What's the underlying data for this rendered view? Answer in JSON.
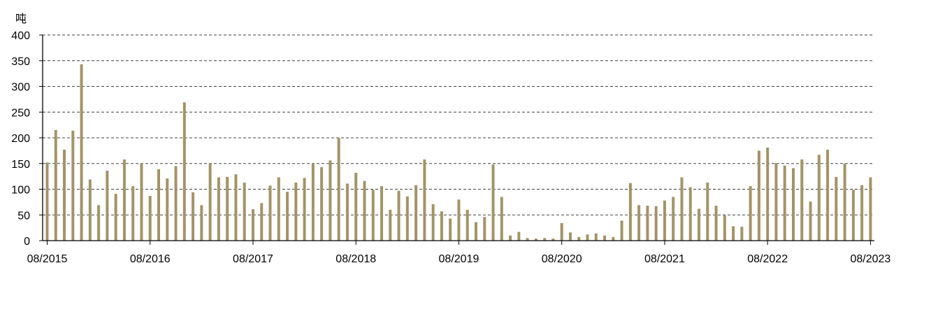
{
  "chart_data": {
    "type": "bar",
    "title": "",
    "xlabel": "",
    "ylabel": "",
    "y_unit": "吨",
    "ylim": [
      0,
      400
    ],
    "y_ticks": [
      0,
      50,
      100,
      150,
      200,
      250,
      300,
      350,
      400
    ],
    "grid": "horizontal-dashed",
    "legend": "none",
    "bar_color": "#A39467",
    "x_tick_labels": [
      "08/2015",
      "08/2016",
      "08/2017",
      "08/2018",
      "08/2019",
      "08/2020",
      "08/2021",
      "08/2022",
      "08/2023"
    ],
    "categories": [
      "08/2015",
      "09/2015",
      "10/2015",
      "11/2015",
      "12/2015",
      "01/2016",
      "02/2016",
      "03/2016",
      "04/2016",
      "05/2016",
      "06/2016",
      "07/2016",
      "08/2016",
      "09/2016",
      "10/2016",
      "11/2016",
      "12/2016",
      "01/2017",
      "02/2017",
      "03/2017",
      "04/2017",
      "05/2017",
      "06/2017",
      "07/2017",
      "08/2017",
      "09/2017",
      "10/2017",
      "11/2017",
      "12/2017",
      "01/2018",
      "02/2018",
      "03/2018",
      "04/2018",
      "05/2018",
      "06/2018",
      "07/2018",
      "08/2018",
      "09/2018",
      "10/2018",
      "11/2018",
      "12/2018",
      "01/2019",
      "02/2019",
      "03/2019",
      "04/2019",
      "05/2019",
      "06/2019",
      "07/2019",
      "08/2019",
      "09/2019",
      "10/2019",
      "11/2019",
      "12/2019",
      "01/2020",
      "02/2020",
      "03/2020",
      "04/2020",
      "05/2020",
      "06/2020",
      "07/2020",
      "08/2020",
      "09/2020",
      "10/2020",
      "11/2020",
      "12/2020",
      "01/2021",
      "02/2021",
      "03/2021",
      "04/2021",
      "05/2021",
      "06/2021",
      "07/2021",
      "08/2021",
      "09/2021",
      "10/2021",
      "11/2021",
      "12/2021",
      "01/2022",
      "02/2022",
      "03/2022",
      "04/2022",
      "05/2022",
      "06/2022",
      "07/2022",
      "08/2022",
      "09/2022",
      "10/2022",
      "11/2022",
      "12/2022",
      "01/2023",
      "02/2023",
      "03/2023",
      "04/2023",
      "05/2023",
      "06/2023",
      "07/2023",
      "08/2023"
    ],
    "values": [
      152,
      215,
      177,
      214,
      343,
      119,
      69,
      136,
      91,
      158,
      106,
      150,
      87,
      139,
      121,
      145,
      269,
      94,
      69,
      150,
      123,
      124,
      129,
      113,
      61,
      73,
      107,
      123,
      95,
      113,
      122,
      150,
      143,
      156,
      200,
      111,
      132,
      116,
      99,
      106,
      60,
      97,
      86,
      108,
      158,
      71,
      57,
      43,
      80,
      60,
      36,
      46,
      148,
      85,
      10,
      17,
      5,
      4,
      5,
      4,
      34,
      16,
      7,
      12,
      14,
      10,
      7,
      39,
      112,
      69,
      68,
      67,
      78,
      85,
      123,
      104,
      62,
      113,
      68,
      49,
      28,
      27,
      106,
      175,
      181,
      151,
      146,
      141,
      158,
      76,
      167,
      177,
      124,
      150,
      99,
      108,
      123
    ]
  }
}
